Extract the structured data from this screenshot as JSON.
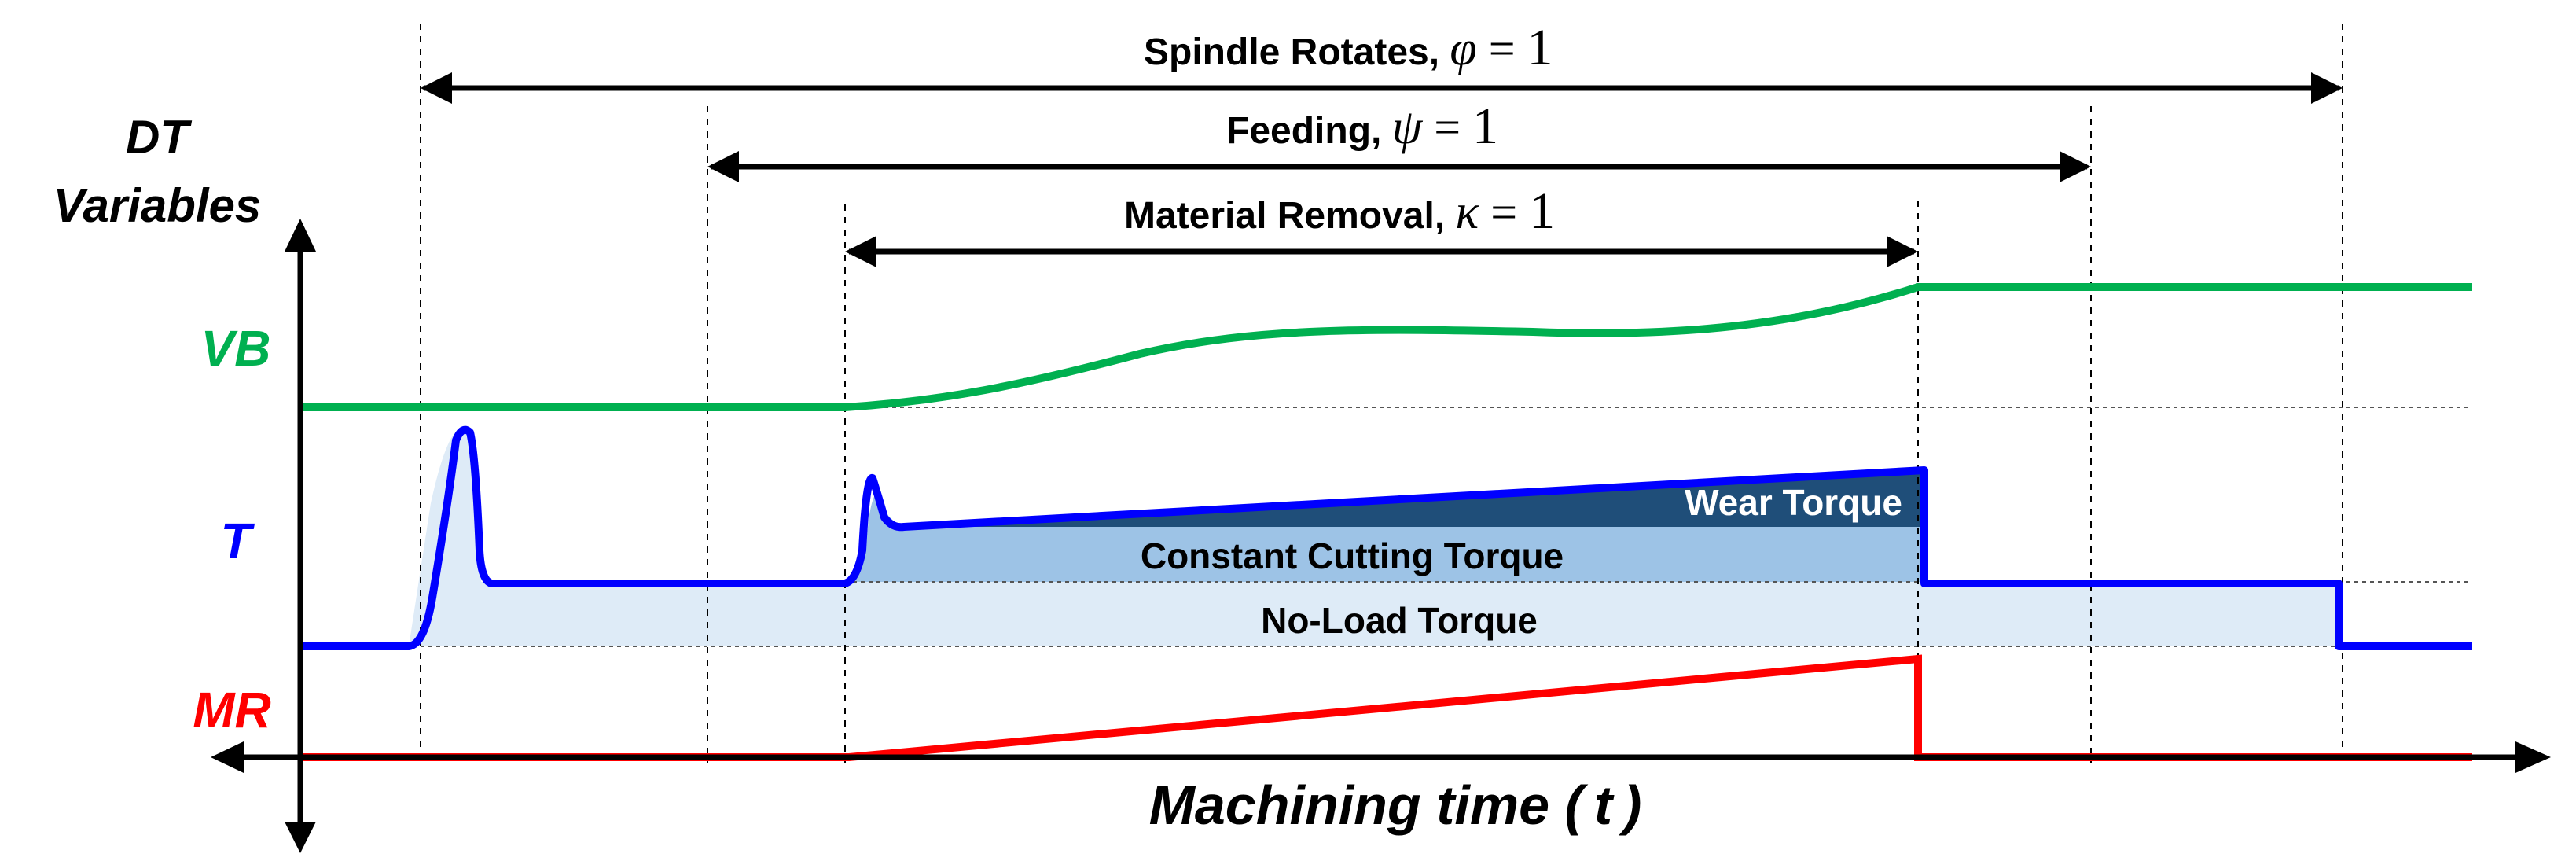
{
  "y_axis": {
    "title_line1": "DT",
    "title_line2": "Variables",
    "labels": {
      "vb": "VB",
      "t": "T",
      "mr": "MR"
    }
  },
  "x_axis": {
    "title_prefix": "Machining time (",
    "title_var": "t",
    "title_suffix": ")"
  },
  "intervals": {
    "spindle": {
      "text": "Spindle Rotates, ",
      "symbol": "φ",
      "equals": " = ",
      "value": "1"
    },
    "feeding": {
      "text": "Feeding, ",
      "symbol": "ψ",
      "equals": " = ",
      "value": "1"
    },
    "removal": {
      "text": "Material Removal, ",
      "symbol": "κ",
      "equals": " = ",
      "value": "1"
    }
  },
  "regions": {
    "wear": "Wear Torque",
    "constant": "Constant Cutting Torque",
    "noload": "No-Load Torque"
  },
  "colors": {
    "vb": "#00b050",
    "t": "#0000ff",
    "mr": "#ff0000",
    "axis": "#000000",
    "wear_fill": "#1f4e79",
    "constant_fill": "#9dc3e6",
    "noload_fill": "#deebf7",
    "ylabel_t": "#0000ff"
  }
}
